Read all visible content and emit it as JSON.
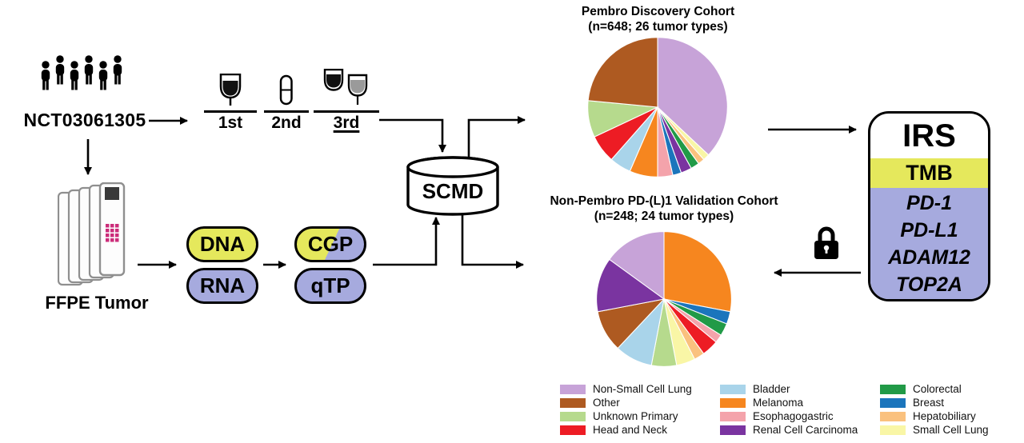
{
  "flow": {
    "trial_id": "NCT03061305",
    "treatment_lines": [
      "1st",
      "2nd",
      "3rd"
    ],
    "ffpe_label": "FFPE Tumor",
    "dna": "DNA",
    "rna": "RNA",
    "cgp": "CGP",
    "qtp": "qTP",
    "database": "SCMD"
  },
  "irs": {
    "title": "IRS",
    "tmb": "TMB",
    "genes": [
      "PD-1",
      "PD-L1",
      "ADAM12",
      "TOP2A"
    ]
  },
  "palette": {
    "yellow": "#e5e85c",
    "purple": "#a6aade",
    "black": "#000000"
  },
  "chart_data": [
    {
      "type": "pie",
      "title": "Pembro Discovery Cohort",
      "subtitle": "(n=648; 26 tumor types)",
      "n": 648,
      "tumor_types": 26,
      "slices": [
        {
          "label": "Non-Small Cell Lung",
          "value": 37,
          "color": "#c7a3d8"
        },
        {
          "label": "Small Cell Lung",
          "value": 1.5,
          "color": "#f9f6a6"
        },
        {
          "label": "Hepatobiliary",
          "value": 1.5,
          "color": "#fac17e"
        },
        {
          "label": "Colorectal",
          "value": 2,
          "color": "#219a47"
        },
        {
          "label": "Renal Cell Carcinoma",
          "value": 2.5,
          "color": "#7a34a0"
        },
        {
          "label": "Breast",
          "value": 2,
          "color": "#1b75bc"
        },
        {
          "label": "Esophagogastric",
          "value": 3.5,
          "color": "#f4a3ab"
        },
        {
          "label": "Melanoma",
          "value": 6.5,
          "color": "#f6861f"
        },
        {
          "label": "Bladder",
          "value": 5,
          "color": "#a9d4ea"
        },
        {
          "label": "Head and Neck",
          "value": 6.5,
          "color": "#ed1c24"
        },
        {
          "label": "Unknown Primary",
          "value": 8.5,
          "color": "#b6da8d"
        },
        {
          "label": "Other",
          "value": 23.5,
          "color": "#ae5a21"
        }
      ]
    },
    {
      "type": "pie",
      "title": "Non-Pembro PD-(L)1 Validation Cohort",
      "subtitle": "(n=248; 24 tumor types)",
      "n": 248,
      "tumor_types": 24,
      "slices": [
        {
          "label": "Melanoma",
          "value": 28,
          "color": "#f6861f"
        },
        {
          "label": "Breast",
          "value": 3,
          "color": "#1b75bc"
        },
        {
          "label": "Colorectal",
          "value": 3,
          "color": "#219a47"
        },
        {
          "label": "Esophagogastric",
          "value": 2,
          "color": "#f4a3ab"
        },
        {
          "label": "Head and Neck",
          "value": 4,
          "color": "#ed1c24"
        },
        {
          "label": "Hepatobiliary",
          "value": 2.5,
          "color": "#fac17e"
        },
        {
          "label": "Small Cell Lung",
          "value": 4.5,
          "color": "#f9f6a6"
        },
        {
          "label": "Unknown Primary",
          "value": 6,
          "color": "#b6da8d"
        },
        {
          "label": "Bladder",
          "value": 9,
          "color": "#a9d4ea"
        },
        {
          "label": "Other",
          "value": 10,
          "color": "#ae5a21"
        },
        {
          "label": "Renal Cell Carcinoma",
          "value": 13,
          "color": "#7a34a0"
        },
        {
          "label": "Non-Small Cell Lung",
          "value": 15,
          "color": "#c7a3d8"
        }
      ]
    }
  ],
  "legend": {
    "items": [
      {
        "label": "Non-Small Cell Lung",
        "color": "#c7a3d8"
      },
      {
        "label": "Other",
        "color": "#ae5a21"
      },
      {
        "label": "Unknown Primary",
        "color": "#b6da8d"
      },
      {
        "label": "Head and Neck",
        "color": "#ed1c24"
      },
      {
        "label": "Bladder",
        "color": "#a9d4ea"
      },
      {
        "label": "Melanoma",
        "color": "#f6861f"
      },
      {
        "label": "Esophagogastric",
        "color": "#f4a3ab"
      },
      {
        "label": "Renal Cell Carcinoma",
        "color": "#7a34a0"
      },
      {
        "label": "Colorectal",
        "color": "#219a47"
      },
      {
        "label": "Breast",
        "color": "#1b75bc"
      },
      {
        "label": "Hepatobiliary",
        "color": "#fac17e"
      },
      {
        "label": "Small Cell Lung",
        "color": "#f9f6a6"
      }
    ]
  }
}
